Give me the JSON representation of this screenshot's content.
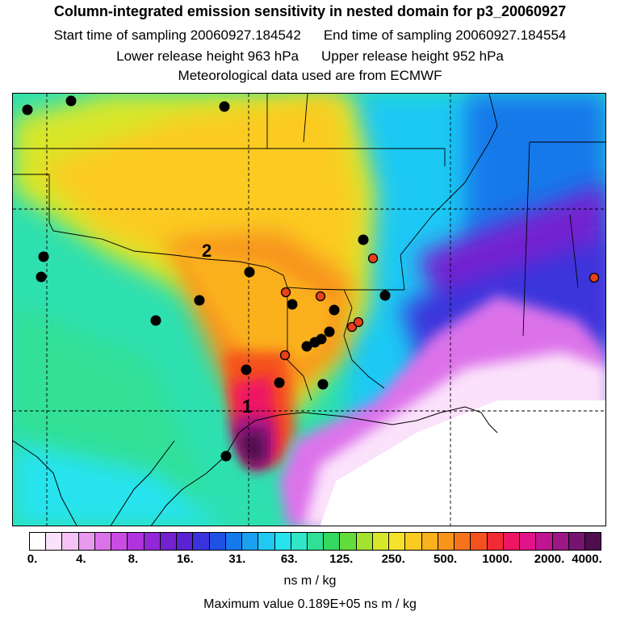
{
  "header": {
    "title": "Column-integrated emission sensitivity in nested domain for p3_20060927",
    "start_label": "Start time of sampling 20060927.184542",
    "end_label": "End time of sampling 20060927.184554",
    "lower_label": "Lower release height  963 hPa",
    "upper_label": "Upper release height  952 hPa",
    "met_label": "Meteorological data used are from ECMWF"
  },
  "map": {
    "markers": [
      {
        "label": "1"
      },
      {
        "label": "2"
      }
    ],
    "station_colors": {
      "black": "#000000",
      "red": "#e8401a"
    }
  },
  "colorbar": {
    "colors": [
      "#ffffff",
      "#fbe2fb",
      "#f4c2f5",
      "#e79aee",
      "#dc72ea",
      "#c94de2",
      "#b033dc",
      "#9327d6",
      "#7421d0",
      "#5a22d2",
      "#3a34dc",
      "#1f52e4",
      "#1479ea",
      "#1aa2f0",
      "#1fc9f4",
      "#27e3ee",
      "#30e6c6",
      "#30e096",
      "#35d860",
      "#63dc3d",
      "#a3e22e",
      "#d8e72b",
      "#f6e22c",
      "#fbcb22",
      "#fab11e",
      "#f8941a",
      "#f6741b",
      "#f5511f",
      "#f32a35",
      "#ee1563",
      "#e01389",
      "#c01590",
      "#9c1785",
      "#751570",
      "#4e0e4d"
    ],
    "ticks": [
      "0.",
      "4.",
      "8.",
      "16.",
      "31.",
      "63.",
      "125.",
      "250.",
      "500.",
      "1000.",
      "2000.",
      "4000."
    ],
    "units": "ns m / kg"
  },
  "footer": {
    "max_value": "Maximum value  0.189E+05 ns m / kg"
  }
}
